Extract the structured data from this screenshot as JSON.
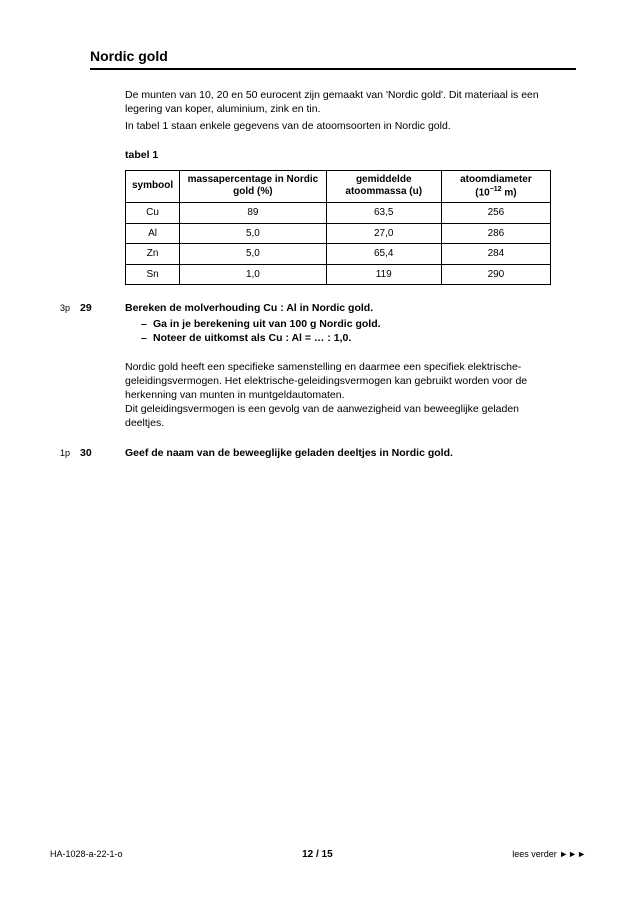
{
  "header": {
    "title": "Nordic gold"
  },
  "intro": {
    "p1": "De munten van 10, 20 en 50 eurocent zijn gemaakt van 'Nordic gold'. Dit materiaal is een legering van koper, aluminium, zink en tin.",
    "p2": "In tabel 1 staan enkele gegevens van de atoomsoorten in Nordic gold.",
    "tableLabel": "tabel 1"
  },
  "table": {
    "columns": [
      "symbool",
      "massapercentage in Nordic gold (%)",
      "gemiddelde atoommassa (u)",
      "atoomdiameter (10⁻¹² m)"
    ],
    "rows": [
      [
        "Cu",
        "89",
        "63,5",
        "256"
      ],
      [
        "Al",
        "5,0",
        "27,0",
        "286"
      ],
      [
        "Zn",
        "5,0",
        "65,4",
        "284"
      ],
      [
        "Sn",
        "1,0",
        "119",
        "290"
      ]
    ]
  },
  "q1": {
    "marker": "3p",
    "num": "29",
    "lead": "Bereken de molverhouding Cu : Al in Nordic gold.",
    "items": [
      "Ga in je berekening uit van 100 g Nordic gold.",
      "Noteer de uitkomst als Cu : Al = … : 1,0."
    ]
  },
  "midpara": {
    "p1": "Nordic gold heeft een specifieke samenstelling en daarmee een specifiek elektrische-geleidingsvermogen. Het elektrische-geleidingsvermogen kan gebruikt worden voor de herkenning van munten in muntgeldautomaten.",
    "p2": "Dit geleidingsvermogen is een gevolg van de aanwezigheid van beweeglijke geladen deeltjes."
  },
  "q2": {
    "marker": "1p",
    "num": "30",
    "lead": "Geef de naam van de beweeglijke geladen deeltjes in Nordic gold."
  },
  "footer": {
    "left": "HA-1028-a-22-1-o",
    "center": "12 / 15",
    "right": "lees verder ►►►"
  }
}
